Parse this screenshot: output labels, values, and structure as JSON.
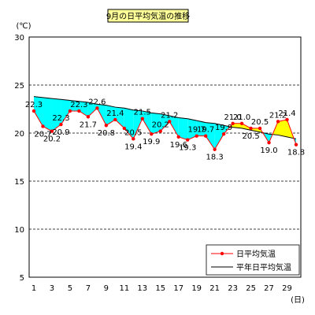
{
  "chart_data": {
    "type": "line",
    "title": "9月の日平均気温の推移",
    "y_unit": "(℃)",
    "x_unit": "(日)",
    "ylim": [
      5,
      30
    ],
    "y_ticks": [
      "5",
      "10",
      "15",
      "20",
      "25",
      "30"
    ],
    "y_tick_values": [
      5,
      10,
      15,
      20,
      25,
      30
    ],
    "x_ticks": [
      "1",
      "3",
      "5",
      "7",
      "9",
      "11",
      "13",
      "15",
      "17",
      "19",
      "21",
      "23",
      "25",
      "27",
      "29"
    ],
    "x_tick_values": [
      1,
      3,
      5,
      7,
      9,
      11,
      13,
      15,
      17,
      19,
      21,
      23,
      25,
      27,
      29
    ],
    "xlim": [
      1,
      30
    ],
    "grid_y": [
      10,
      15,
      20,
      25
    ],
    "days": [
      1,
      2,
      3,
      4,
      5,
      6,
      7,
      8,
      9,
      10,
      11,
      12,
      13,
      14,
      15,
      16,
      17,
      18,
      19,
      20,
      21,
      22,
      23,
      24,
      25,
      26,
      27,
      28,
      29,
      30
    ],
    "series": [
      {
        "name": "日平均気温",
        "values": [
          22.3,
          20.7,
          20.2,
          20.9,
          22.3,
          22.3,
          21.7,
          22.6,
          20.8,
          21.4,
          20.5,
          19.4,
          21.5,
          19.9,
          20.2,
          21.2,
          19.6,
          19.3,
          19.7,
          19.7,
          18.3,
          19.9,
          21.0,
          21.0,
          20.5,
          20.5,
          19.0,
          21.2,
          21.4,
          18.8
        ],
        "color": "#ff0000"
      },
      {
        "name": "平年日平均気温",
        "values": [
          23.8,
          23.7,
          23.6,
          23.5,
          23.4,
          23.3,
          23.2,
          23.0,
          22.9,
          22.7,
          22.6,
          22.4,
          22.3,
          22.1,
          22.0,
          21.8,
          21.6,
          21.5,
          21.3,
          21.1,
          21.0,
          20.8,
          20.6,
          20.5,
          20.3,
          20.1,
          19.9,
          19.8,
          19.6,
          19.4
        ],
        "color": "#000000"
      }
    ],
    "data_labels": [
      {
        "text": "22.3",
        "day": 1,
        "pos": "above"
      },
      {
        "text": "20.7",
        "day": 2,
        "pos": "below"
      },
      {
        "text": "20.2",
        "day": 3,
        "pos": "below"
      },
      {
        "text": "22.3",
        "day": 4,
        "pos": "above"
      },
      {
        "text": "20.9",
        "day": 4,
        "pos": "below"
      },
      {
        "text": "22.3",
        "day": 6,
        "pos": "above"
      },
      {
        "text": "21.7",
        "day": 7,
        "pos": "below"
      },
      {
        "text": "22.6",
        "day": 8,
        "pos": "above"
      },
      {
        "text": "20.8",
        "day": 9,
        "pos": "below"
      },
      {
        "text": "21.4",
        "day": 10,
        "pos": "above"
      },
      {
        "text": "20.5",
        "day": 12,
        "pos": "above"
      },
      {
        "text": "19.4",
        "day": 12,
        "pos": "below"
      },
      {
        "text": "21.5",
        "day": 13,
        "pos": "above"
      },
      {
        "text": "19.9",
        "day": 14,
        "pos": "below"
      },
      {
        "text": "20.2",
        "day": 15,
        "pos": "above"
      },
      {
        "text": "21.2",
        "day": 16,
        "pos": "above"
      },
      {
        "text": "19.6",
        "day": 17,
        "pos": "below"
      },
      {
        "text": "19.3",
        "day": 18,
        "pos": "below"
      },
      {
        "text": "19.7",
        "day": 19,
        "pos": "above"
      },
      {
        "text": "19.7",
        "day": 20,
        "pos": "above"
      },
      {
        "text": "18.3",
        "day": 21,
        "pos": "below"
      },
      {
        "text": "19.9",
        "day": 22,
        "pos": "above"
      },
      {
        "text": "21.0",
        "day": 23,
        "pos": "above"
      },
      {
        "text": "21.0",
        "day": 24,
        "pos": "above"
      },
      {
        "text": "20.5",
        "day": 25,
        "pos": "below"
      },
      {
        "text": "20.5",
        "day": 26,
        "pos": "above"
      },
      {
        "text": "19.0",
        "day": 27,
        "pos": "below"
      },
      {
        "text": "21.2",
        "day": 28,
        "pos": "above"
      },
      {
        "text": "21.4",
        "day": 29,
        "pos": "above"
      },
      {
        "text": "18.8",
        "day": 30,
        "pos": "below"
      }
    ],
    "fill_colors": {
      "below_normal": "#00ffff",
      "above_normal": "#ffff00"
    },
    "grid": true,
    "legend_position": "bottom-right"
  }
}
